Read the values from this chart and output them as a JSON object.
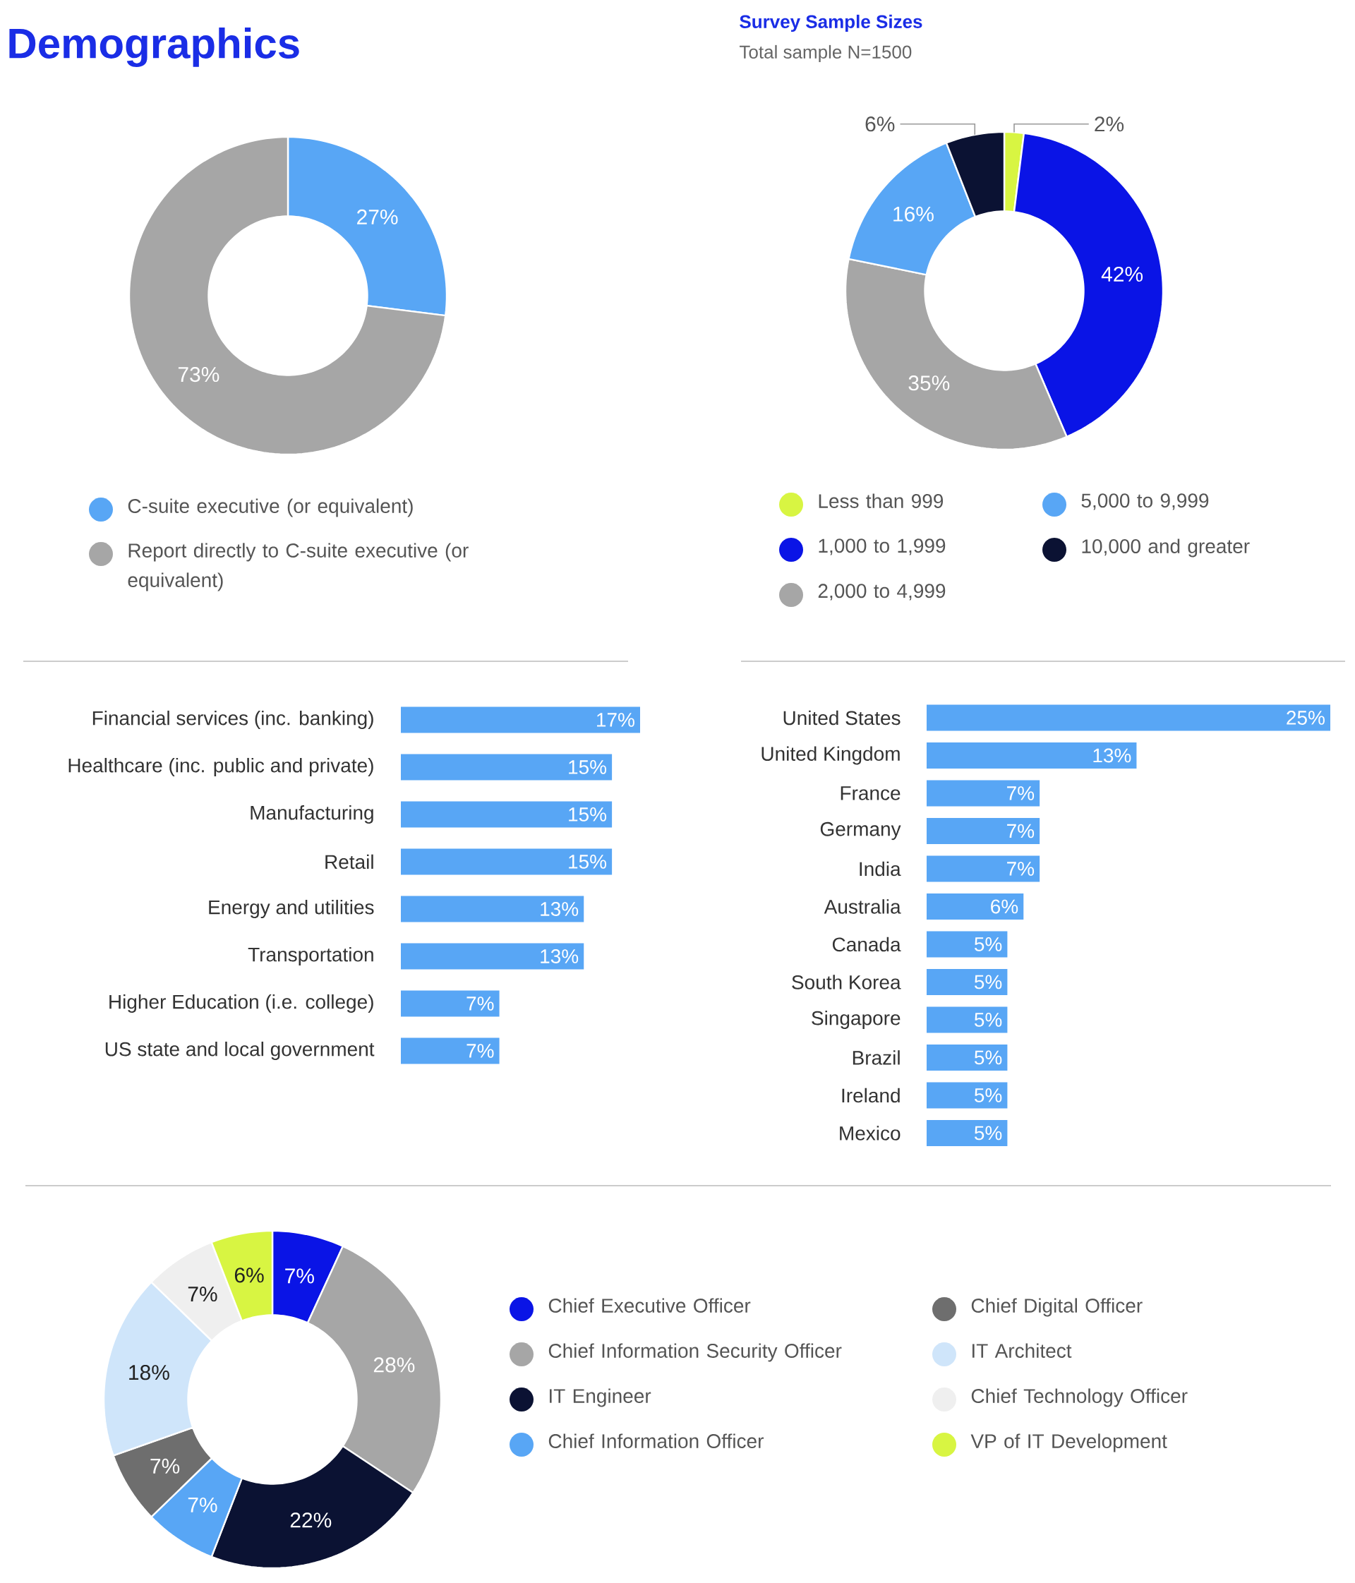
{
  "chart_data": [
    {
      "type": "donut",
      "title": "Demographics",
      "categories": [
        "C-suite executive (or equivalent)",
        "Report directly to C-suite executive (or equivalent)"
      ],
      "values": [
        27,
        73
      ],
      "colors": [
        "#58a6f5",
        "#a6a6a6"
      ],
      "value_labels": [
        "27%",
        "73%"
      ],
      "legend": "bottom"
    },
    {
      "type": "donut",
      "title": "Survey Sample Sizes",
      "subtitle": "Total sample N=1500",
      "categories": [
        "Less than 999",
        "1,000 to 1,999",
        "2,000 to 4,999",
        "5,000 to 9,999",
        "10,000 and greater"
      ],
      "values": [
        2,
        42,
        35,
        16,
        6
      ],
      "colors": [
        "#d8f542",
        "#0a14e6",
        "#a6a6a6",
        "#58a6f5",
        "#0b1233"
      ],
      "value_labels": [
        "2%",
        "42%",
        "35%",
        "16%",
        "6%"
      ],
      "legend": "bottom"
    },
    {
      "type": "bar",
      "orientation": "horizontal",
      "categories": [
        "Financial services (inc. banking)",
        "Healthcare (inc. public and private)",
        "Manufacturing",
        "Retail",
        "Energy and utilities",
        "Transportation",
        "Higher Education (i.e. college)",
        "US state and local government"
      ],
      "values": [
        17,
        15,
        15,
        15,
        13,
        13,
        7,
        7
      ],
      "color": "#58a6f5",
      "value_labels": [
        "17%",
        "15%",
        "15%",
        "15%",
        "13%",
        "13%",
        "7%",
        "7%"
      ]
    },
    {
      "type": "bar",
      "orientation": "horizontal",
      "categories": [
        "United States",
        "United Kingdom",
        "France",
        "Germany",
        "India",
        "Australia",
        "Canada",
        "South Korea",
        "Singapore",
        "Brazil",
        "Ireland",
        "Mexico"
      ],
      "values": [
        25,
        13,
        7,
        7,
        7,
        6,
        5,
        5,
        5,
        5,
        5,
        5
      ],
      "color": "#58a6f5",
      "value_labels": [
        "25%",
        "13%",
        "7%",
        "7%",
        "7%",
        "6%",
        "5%",
        "5%",
        "5%",
        "5%",
        "5%",
        "5%"
      ]
    },
    {
      "type": "donut",
      "categories": [
        "Chief Executive Officer",
        "Chief Information Security Officer",
        "IT Engineer",
        "Chief Information Officer",
        "Chief Digital Officer",
        "IT Architect",
        "Chief Technology Officer",
        "VP of IT Development"
      ],
      "values": [
        7,
        28,
        22,
        7,
        7,
        18,
        7,
        6
      ],
      "colors": [
        "#0a14e6",
        "#a6a6a6",
        "#0b1233",
        "#58a6f5",
        "#6e6e6e",
        "#cfe5fa",
        "#efefef",
        "#d8f542"
      ],
      "value_labels": [
        "7%",
        "28%",
        "22%",
        "7%",
        "7%",
        "18%",
        "7%",
        "6%"
      ],
      "legend": "right"
    }
  ]
}
